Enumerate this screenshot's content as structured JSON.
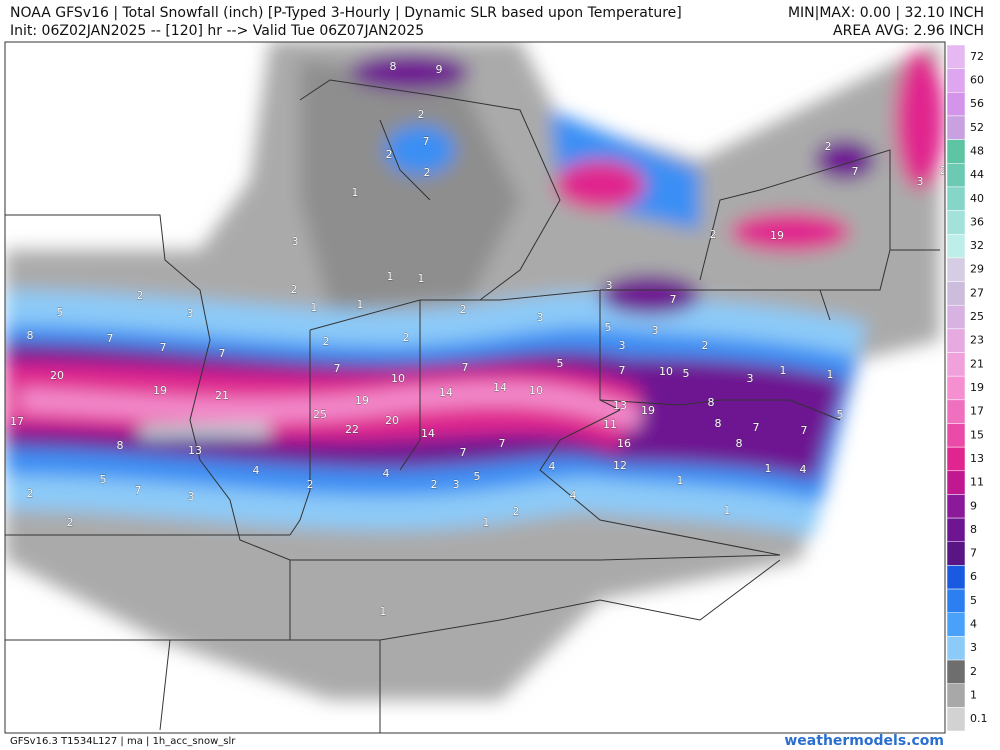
{
  "header": {
    "line1_left": "NOAA GFSv16 | Total Snowfall (inch) [P-Typed 3-Hourly | Dynamic SLR based upon Temperature]",
    "line1_right": "MIN|MAX: 0.00 | 32.10 INCH",
    "line2_left": "Init: 06Z02JAN2025 -- [120] hr --> Valid Tue 06Z07JAN2025",
    "line2_right": "AREA AVG: 2.96 INCH"
  },
  "legend": [
    {
      "label": "72",
      "color": "#e6b8f2"
    },
    {
      "label": "60",
      "color": "#dda6ee"
    },
    {
      "label": "56",
      "color": "#d494ea"
    },
    {
      "label": "52",
      "color": "#c9a0e0"
    },
    {
      "label": "48",
      "color": "#5dc4a4"
    },
    {
      "label": "44",
      "color": "#6cc9b2"
    },
    {
      "label": "40",
      "color": "#85d5c8"
    },
    {
      "label": "36",
      "color": "#a2e2da"
    },
    {
      "label": "32",
      "color": "#bdeee8"
    },
    {
      "label": "29",
      "color": "#d4cde3"
    },
    {
      "label": "27",
      "color": "#cbbddb"
    },
    {
      "label": "25",
      "color": "#d8b3e2"
    },
    {
      "label": "23",
      "color": "#e6aae0"
    },
    {
      "label": "21",
      "color": "#f0a0da"
    },
    {
      "label": "19",
      "color": "#f490d0"
    },
    {
      "label": "17",
      "color": "#f070c0"
    },
    {
      "label": "15",
      "color": "#ea4aa8"
    },
    {
      "label": "13",
      "color": "#e0258e"
    },
    {
      "label": "11",
      "color": "#c01890"
    },
    {
      "label": "9",
      "color": "#8a1a9a"
    },
    {
      "label": "8",
      "color": "#6e1592"
    },
    {
      "label": "7",
      "color": "#5a1585"
    },
    {
      "label": "6",
      "color": "#1a5ae0"
    },
    {
      "label": "5",
      "color": "#2c7ff0"
    },
    {
      "label": "4",
      "color": "#4aa2f8"
    },
    {
      "label": "3",
      "color": "#8ccaf8"
    },
    {
      "label": "2",
      "color": "#6e6e6e"
    },
    {
      "label": "1",
      "color": "#a8a8a8"
    },
    {
      "label": "0.1",
      "color": "#d2d2d2"
    }
  ],
  "map": {
    "labels": [
      "8",
      "9",
      "7",
      "2",
      "2",
      "2",
      "1",
      "3",
      "2",
      "1",
      "1",
      "1",
      "1",
      "2",
      "2",
      "3",
      "3",
      "7",
      "5",
      "3",
      "3",
      "2",
      "2",
      "19",
      "2",
      "7",
      "3",
      "2",
      "2",
      "5",
      "3",
      "8",
      "7",
      "7",
      "7",
      "2",
      "7",
      "7",
      "5",
      "7",
      "10",
      "5",
      "3",
      "1",
      "1",
      "20",
      "19",
      "21",
      "10",
      "14",
      "14",
      "10",
      "19",
      "25",
      "20",
      "22",
      "14",
      "13",
      "19",
      "8",
      "11",
      "8",
      "5",
      "17",
      "16",
      "8",
      "7",
      "7",
      "8",
      "13",
      "7",
      "7",
      "12",
      "4",
      "4",
      "4",
      "4",
      "5",
      "7",
      "3",
      "2",
      "2",
      "3",
      "5",
      "1",
      "1",
      "2",
      "4",
      "2",
      "1",
      "1",
      "2",
      "1"
    ]
  },
  "footer": {
    "left": "GFSv16.3 T1534L127 | ma | 1h_acc_snow_slr",
    "right": "weathermodels.com"
  }
}
